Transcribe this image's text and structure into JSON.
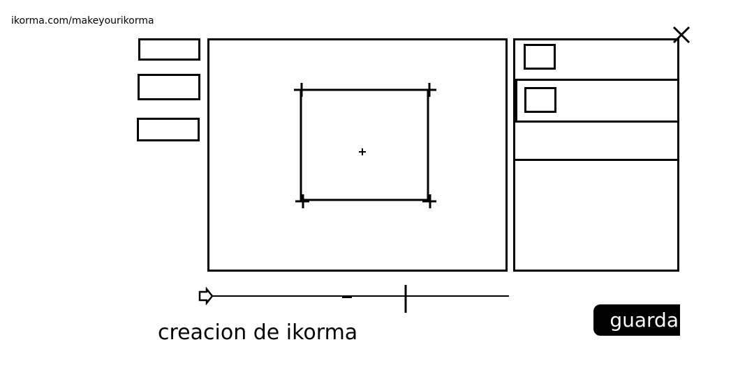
{
  "browser": {
    "url": "ikorma.com/makeyourikorma"
  },
  "page": {
    "title": "creacion de ikorma"
  },
  "actions": {
    "save_label": "guarda"
  },
  "icons": {
    "close": "close-icon",
    "play": "play-arrow-icon"
  },
  "colors": {
    "ink": "#000000",
    "background": "#ffffff",
    "button_bg": "#000000",
    "button_text": "#ffffff"
  }
}
